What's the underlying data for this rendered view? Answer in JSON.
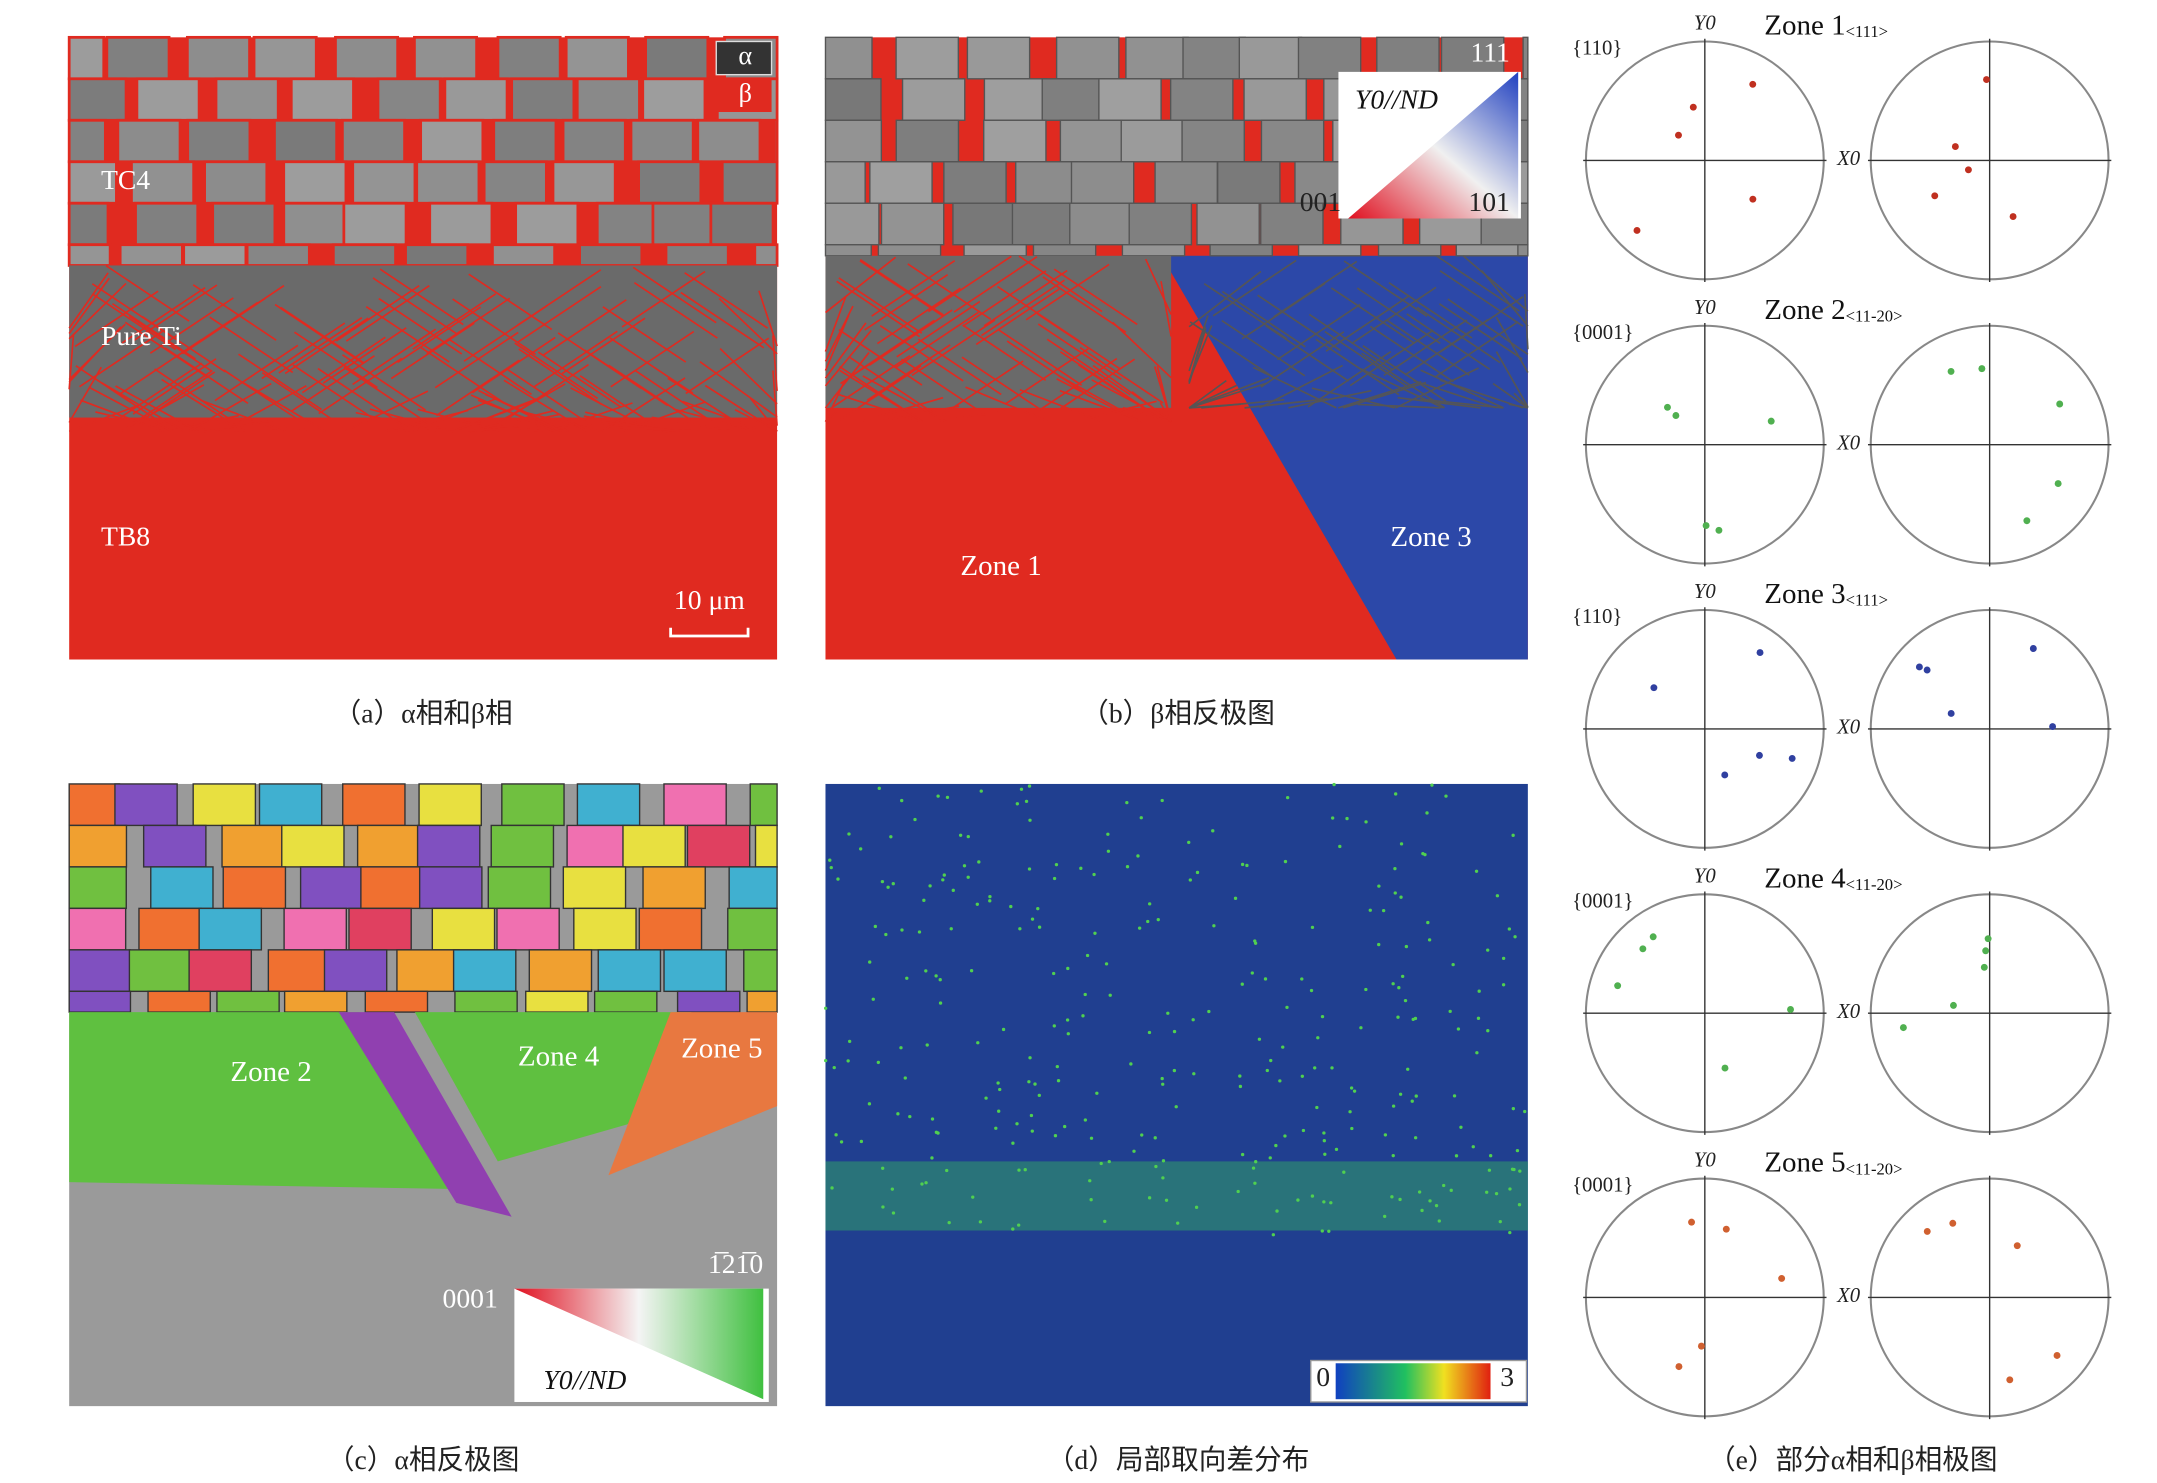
{
  "panels": [
    {
      "caption": "（a）α相和β相",
      "labels": [
        "α",
        "β",
        "TC4",
        "Pure Ti",
        "TB8",
        "10 μm"
      ]
    },
    {
      "caption": "（b）β相反极图",
      "labels": [
        "111",
        "Y0//ND",
        "001",
        "101",
        "Zone 1",
        "Zone 3"
      ]
    },
    {
      "caption": "（c）α相反极图",
      "labels": [
        "Zone 2",
        "Zone 4",
        "Zone 5",
        "0001",
        "1̅21̅0",
        "Y0//ND"
      ]
    },
    {
      "caption": "（d）局部取向差分布",
      "labels": [
        "0",
        "3"
      ]
    },
    {
      "caption": "（e）部分α相和β相极图"
    }
  ],
  "pole_figures": {
    "y_axis": "Y0",
    "x_axis": "X0",
    "zones": [
      {
        "name": "Zone 1",
        "direction": "<111>",
        "plane": "{110}"
      },
      {
        "name": "Zone 2",
        "direction": "<11-20>",
        "plane": "{0001}"
      },
      {
        "name": "Zone 3",
        "direction": "<111>",
        "plane": "{110}"
      },
      {
        "name": "Zone 4",
        "direction": "<11-20>",
        "plane": "{0001}"
      },
      {
        "name": "Zone 5",
        "direction": "<11-20>",
        "plane": "{0001}"
      }
    ]
  }
}
